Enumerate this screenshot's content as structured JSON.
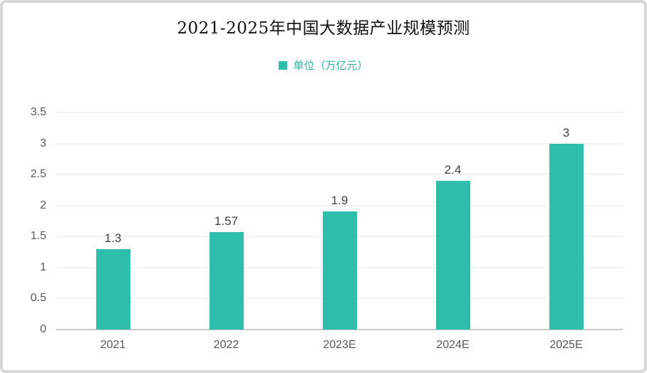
{
  "colors": {
    "bar": "#2FBEAC",
    "legend_text": "#2FAF9F",
    "axis_text": "#595959",
    "value_text": "#404040",
    "gridline": "#E4E4E4",
    "axis_line": "#C8C8C8",
    "frame_border": "#D7D7D7"
  },
  "chart_data": {
    "type": "bar",
    "title": "2021-2025年中国大数据产业规模预测",
    "legend_label": "单位（万亿元）",
    "legend_position": "top-center",
    "categories": [
      "2021",
      "2022",
      "2023E",
      "2024E",
      "2025E"
    ],
    "values": [
      1.3,
      1.57,
      1.9,
      2.4,
      3
    ],
    "value_labels": [
      "1.3",
      "1.57",
      "1.9",
      "2.4",
      "3"
    ],
    "xlabel": "",
    "ylabel": "",
    "ylim": [
      0,
      3.5
    ],
    "yticks": [
      "0",
      "0.5",
      "1",
      "1.5",
      "2",
      "2.5",
      "3",
      "3.5"
    ],
    "grid": true
  }
}
